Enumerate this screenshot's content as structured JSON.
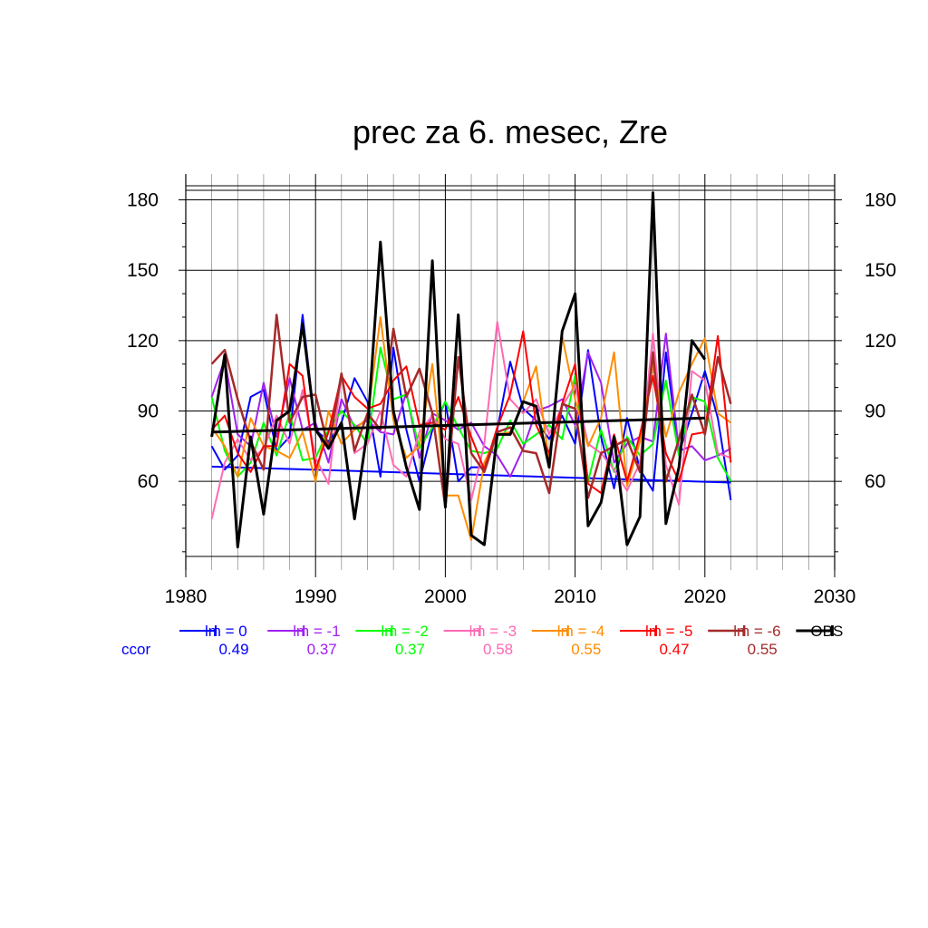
{
  "chart_data": {
    "type": "line",
    "title": "prec za 6. mesec, Zre",
    "xlabel": "",
    "ylabel": "",
    "xlim": [
      1980,
      2030
    ],
    "ylim": [
      28,
      186
    ],
    "x_ticks": [
      1980,
      1990,
      2000,
      2010,
      2020,
      2030
    ],
    "y_ticks": [
      60,
      90,
      120,
      150,
      180
    ],
    "grid": true,
    "legend_position": "below",
    "ccor_label": "ccor",
    "ccor_color": "#0000ff",
    "x": [
      1982,
      1983,
      1984,
      1985,
      1986,
      1987,
      1988,
      1989,
      1990,
      1991,
      1992,
      1993,
      1994,
      1995,
      1996,
      1997,
      1998,
      1999,
      2000,
      2001,
      2002,
      2003,
      2004,
      2005,
      2006,
      2007,
      2008,
      2009,
      2010,
      2011,
      2012,
      2013,
      2014,
      2015,
      2016,
      2017,
      2018,
      2019,
      2020,
      2021,
      2022
    ],
    "series": [
      {
        "name": "lm = 0",
        "ccor": "0.49",
        "color": "#0000ff",
        "width": 2,
        "values": [
          75,
          65,
          71,
          96,
          99,
          73,
          79,
          131,
          82,
          77,
          85,
          104,
          94,
          62,
          117,
          82,
          60,
          82,
          94,
          60,
          66,
          66,
          82,
          111,
          91,
          86,
          78,
          88,
          76,
          116,
          79,
          57,
          87,
          65,
          56,
          115,
          72,
          89,
          107,
          87,
          52
        ],
        "trend": [
          66.3,
          59.5
        ]
      },
      {
        "name": "lm = -1",
        "ccor": "0.37",
        "color": "#a020f0",
        "width": 2,
        "values": [
          96,
          112,
          80,
          75,
          102,
          79,
          104,
          82,
          85,
          68,
          95,
          83,
          86,
          81,
          80,
          98,
          70,
          89,
          86,
          82,
          85,
          75,
          71,
          62,
          74,
          90,
          92,
          95,
          84,
          115,
          102,
          68,
          76,
          79,
          77,
          123,
          73,
          75,
          69,
          71,
          74
        ]
      },
      {
        "name": "lm = -2",
        "ccor": "0.37",
        "color": "#00ff00",
        "width": 2,
        "values": [
          96,
          73,
          62,
          68,
          85,
          71,
          89,
          69,
          70,
          82,
          90,
          84,
          76,
          117,
          95,
          97,
          74,
          83,
          94,
          83,
          73,
          72,
          74,
          86,
          76,
          80,
          84,
          78,
          105,
          60,
          82,
          64,
          79,
          71,
          76,
          103,
          71,
          96,
          94,
          70,
          60
        ]
      },
      {
        "name": "lm = -3",
        "ccor": "0.58",
        "color": "#ff69b4",
        "width": 2,
        "values": [
          44,
          68,
          78,
          69,
          74,
          88,
          76,
          99,
          70,
          59,
          106,
          72,
          76,
          90,
          67,
          62,
          81,
          88,
          78,
          76,
          52,
          76,
          128,
          95,
          89,
          95,
          80,
          92,
          101,
          76,
          72,
          65,
          56,
          68,
          123,
          67,
          50,
          107,
          103,
          72,
          70
        ]
      },
      {
        "name": "lm = -4",
        "ccor": "0.55",
        "color": "#ff8c00",
        "width": 2,
        "values": [
          83,
          75,
          62,
          87,
          75,
          73,
          70,
          81,
          60,
          90,
          76,
          82,
          87,
          130,
          86,
          70,
          75,
          110,
          54,
          54,
          35,
          68,
          80,
          81,
          94,
          109,
          68,
          122,
          95,
          75,
          87,
          115,
          58,
          77,
          110,
          79,
          98,
          110,
          121,
          89,
          85
        ]
      },
      {
        "name": "lm = -5",
        "ccor": "0.47",
        "color": "#ff0000",
        "width": 2,
        "values": [
          82,
          88,
          72,
          64,
          75,
          75,
          110,
          105,
          65,
          81,
          105,
          96,
          91,
          93,
          103,
          109,
          84,
          85,
          82,
          96,
          79,
          65,
          83,
          97,
          124,
          84,
          72,
          93,
          110,
          59,
          55,
          80,
          60,
          80,
          105,
          72,
          60,
          80,
          81,
          122,
          68
        ]
      },
      {
        "name": "lm = -6",
        "ccor": "0.55",
        "color": "#a52a2a",
        "width": 2.5,
        "values": [
          110,
          116,
          95,
          77,
          65,
          131,
          85,
          96,
          97,
          74,
          106,
          73,
          89,
          82,
          125,
          96,
          108,
          89,
          49,
          113,
          72,
          64,
          81,
          83,
          73,
          72,
          55,
          93,
          91,
          53,
          72,
          75,
          78,
          64,
          115,
          60,
          78,
          97,
          80,
          113,
          93
        ]
      },
      {
        "name": "OBS",
        "ccor": "",
        "color": "#000000",
        "width": 3,
        "values": [
          79,
          114,
          32,
          79,
          46,
          86,
          90,
          127,
          82,
          74,
          85,
          44,
          82,
          162,
          90,
          66,
          48,
          154,
          49,
          131,
          37,
          33,
          80,
          80,
          94,
          92,
          66,
          124,
          140,
          41,
          51,
          79,
          33,
          45,
          183,
          42,
          66,
          120,
          112,
          null,
          null
        ],
        "trend": [
          81,
          87
        ]
      }
    ]
  }
}
